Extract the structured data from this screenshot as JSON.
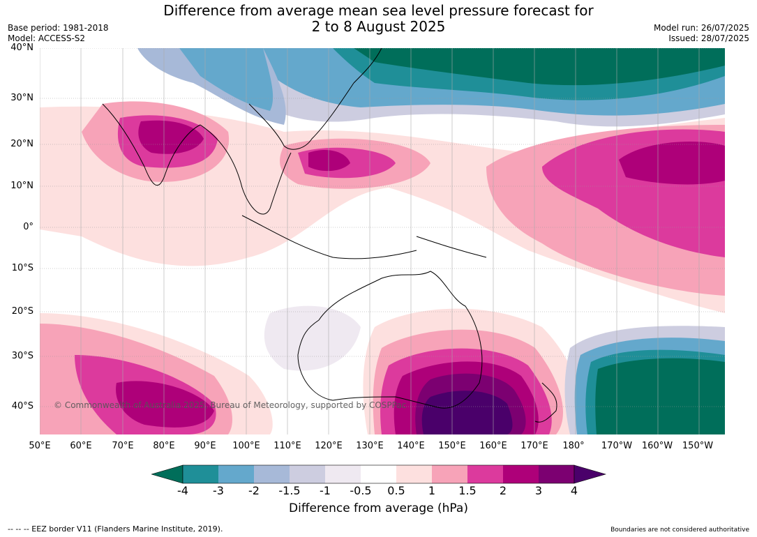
{
  "title_line1": "Difference from average mean sea level pressure forecast for",
  "title_line2": "2 to 8 August 2025",
  "meta_left": {
    "base_period": "Base period: 1981-2018",
    "model": "Model: ACCESS-S2"
  },
  "meta_right": {
    "model_run": "Model run: 26/07/2025",
    "issued": "Issued: 28/07/2025"
  },
  "lat_labels": [
    "40°N",
    "30°N",
    "20°N",
    "10°N",
    "0°",
    "10°S",
    "20°S",
    "30°S",
    "40°S"
  ],
  "lon_labels": [
    "50°E",
    "60°E",
    "70°E",
    "80°E",
    "90°E",
    "100°E",
    "110°E",
    "120°E",
    "130°E",
    "140°E",
    "150°E",
    "160°E",
    "170°E",
    "180°",
    "170°W",
    "160°W",
    "150°W"
  ],
  "colorbar": {
    "ticks": [
      "-4",
      "-3",
      "-2",
      "-1.5",
      "-1",
      "-0.5",
      "0.5",
      "1",
      "1.5",
      "2",
      "3",
      "4"
    ],
    "colors": [
      "#006e5a",
      "#1f8f98",
      "#64a8cc",
      "#a7b9d8",
      "#cdcde0",
      "#efe9f1",
      "#ffffff",
      "#fde0df",
      "#f7a3b8",
      "#dc3a9d",
      "#ae0079",
      "#7c0071",
      "#4a006a"
    ],
    "label": "Difference from average (hPa)"
  },
  "copyright": "© Commonwealth of Australia 2025, Bureau of Meteorology, supported by COSPPac",
  "footer_left": "--  --  -- EEZ border V11 (Flanders Marine Institute, 2019).",
  "footer_right": "Boundaries are not considered authoritative"
}
